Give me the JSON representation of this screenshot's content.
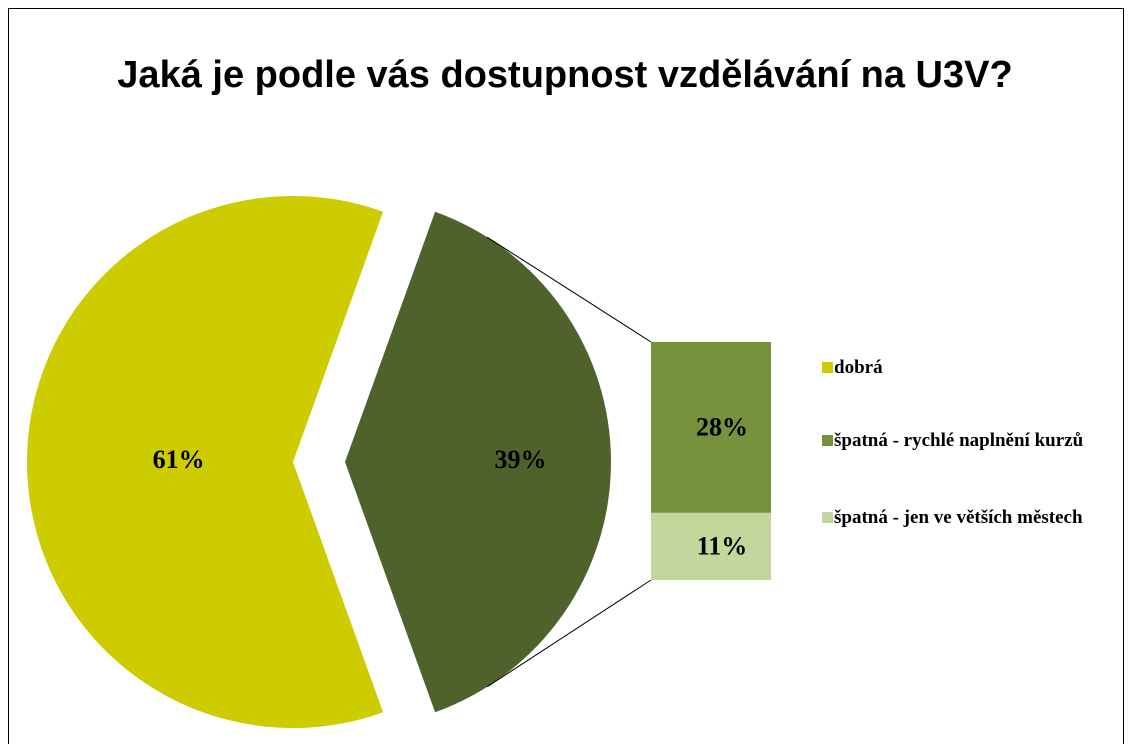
{
  "chart_data": {
    "type": "pie",
    "title": "Jaká je podle vás dostupnost vzdělávání na U3V?",
    "categories": [
      "dobrá",
      "špatná - rychlé naplnění kurzů",
      "špatná - jen ve větších městech"
    ],
    "values": [
      61,
      28,
      11
    ],
    "value_labels": [
      "61%",
      "28%",
      "11%"
    ],
    "colors": [
      "#cccc00",
      "#76923c",
      "#c3d69b"
    ],
    "other": {
      "value": 39,
      "value_label": "39%",
      "color": "#4f622b"
    },
    "legend": "right"
  }
}
